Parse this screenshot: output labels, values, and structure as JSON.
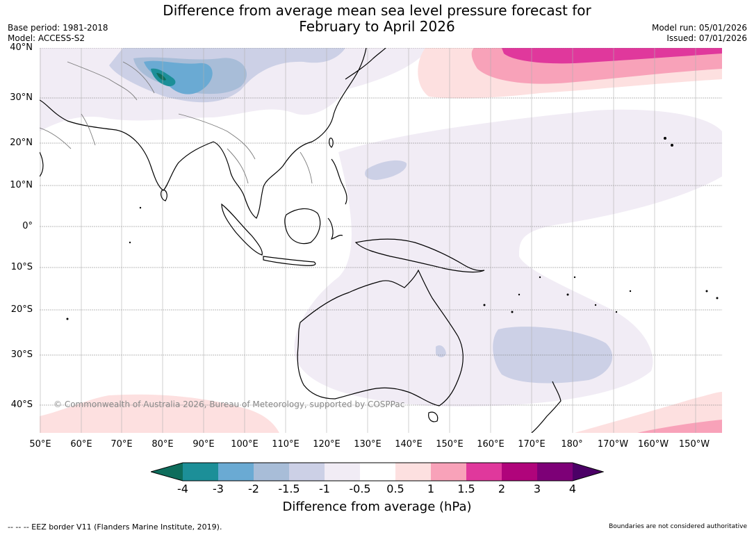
{
  "title": {
    "line1": "Difference from average mean sea level pressure forecast for",
    "line2": "February to April 2026"
  },
  "meta": {
    "base_period": "Base period: 1981-2018",
    "model": "Model: ACCESS-S2",
    "model_run": "Model run: 05/01/2026",
    "issued": "Issued: 07/01/2026"
  },
  "axes": {
    "latitude_labels": [
      "40°N",
      "30°N",
      "20°N",
      "10°N",
      "0°",
      "10°S",
      "20°S",
      "30°S",
      "40°S"
    ],
    "longitude_labels": [
      "50°E",
      "60°E",
      "70°E",
      "80°E",
      "90°E",
      "100°E",
      "110°E",
      "120°E",
      "130°E",
      "140°E",
      "150°E",
      "160°E",
      "170°E",
      "180°",
      "170°W",
      "160°W",
      "150°W"
    ]
  },
  "colorbar": {
    "title": "Difference from average (hPa)",
    "ticks": [
      "-4",
      "-3",
      "-2",
      "-1.5",
      "-1",
      "-0.5",
      "0.5",
      "1",
      "1.5",
      "2",
      "3",
      "4"
    ],
    "colors": {
      "lt_-4": "#0e6d5c",
      "m4_m3": "#1c8f98",
      "m3_m2": "#6aaad3",
      "m2_m15": "#a8bdd8",
      "m15_m1": "#ccd0e6",
      "m1_m05": "#f1ecf5",
      "m05_05": "#ffffff",
      "p05_1": "#fde0e0",
      "p1_15": "#f8a2b9",
      "p15_2": "#e0389c",
      "p2_3": "#b0047b",
      "p3_4": "#7d0077",
      "gt_4": "#4b0066"
    }
  },
  "copyright": "© Commonwealth of Australia 2026, Bureau of Meteorology, supported by COSPPac",
  "footer": {
    "eez_legend": "--  --  -- EEZ border V11 (Flanders Marine Institute, 2019).",
    "disclaimer": "Boundaries are not considered authoritative"
  }
}
